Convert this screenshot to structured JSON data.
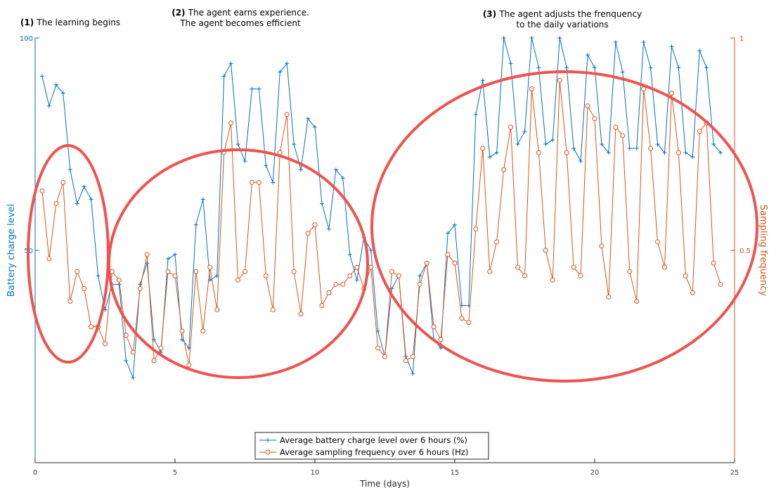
{
  "chart_data": {
    "type": "line",
    "xlabel": "Time (days)",
    "ylabel_left": "Battery charge level",
    "ylabel_right": "Sampling frequency",
    "xlim": [
      0,
      25
    ],
    "ylim_left": [
      0,
      100
    ],
    "ylim_right": [
      0,
      1
    ],
    "xticks": [
      0,
      5,
      10,
      15,
      20,
      25
    ],
    "yticks_left": [
      50,
      100
    ],
    "yticks_right": [
      0.5,
      1
    ],
    "grid": false,
    "legend_position": "bottom-center",
    "annotations": [
      {
        "bold": "(1)",
        "lines": [
          "The learning begins"
        ]
      },
      {
        "bold": "(2)",
        "lines": [
          "The agent earns experience.",
          "The agent becomes efficient"
        ]
      },
      {
        "bold": "(3)",
        "lines": [
          "The agent adjusts the frenquency",
          "to the daily variations"
        ]
      }
    ],
    "series": [
      {
        "name": "Average battery charge level over 6 hours (%)",
        "axis": "left",
        "color": "#0072BD",
        "marker": "+",
        "x": [
          0.25,
          0.5,
          0.75,
          1,
          1.25,
          1.5,
          1.75,
          2,
          2.25,
          2.5,
          2.75,
          3,
          3.25,
          3.5,
          3.75,
          4,
          4.25,
          4.5,
          4.75,
          5,
          5.25,
          5.5,
          5.75,
          6,
          6.25,
          6.5,
          6.75,
          7,
          7.25,
          7.5,
          7.75,
          8,
          8.25,
          8.5,
          8.75,
          9,
          9.25,
          9.5,
          9.75,
          10,
          10.25,
          10.5,
          10.75,
          11,
          11.25,
          11.5,
          11.75,
          12,
          12.25,
          12.5,
          12.75,
          13,
          13.25,
          13.5,
          13.75,
          14,
          14.25,
          14.5,
          14.75,
          15,
          15.25,
          15.5,
          15.75,
          16,
          16.25,
          16.5,
          16.75,
          17,
          17.25,
          17.5,
          17.75,
          18,
          18.25,
          18.5,
          18.75,
          19,
          19.25,
          19.5,
          19.75,
          20,
          20.25,
          20.5,
          20.75,
          21,
          21.25,
          21.5,
          21.75,
          22,
          22.25,
          22.5,
          22.75,
          23,
          23.25,
          23.5,
          23.75,
          24,
          24.25,
          24.5
        ],
        "values": [
          91,
          84,
          89,
          87,
          69,
          61,
          65,
          62,
          44,
          36,
          42,
          42,
          24,
          20,
          42,
          47,
          29,
          26,
          48,
          49,
          29,
          27,
          56,
          62,
          43,
          44,
          91,
          94,
          75,
          71,
          88,
          88,
          70,
          66,
          92,
          94,
          75,
          69,
          81,
          79,
          61,
          55,
          69,
          67,
          49,
          43,
          53,
          50,
          31,
          25,
          41,
          44,
          25,
          21,
          44,
          47,
          29,
          27,
          54,
          56,
          37,
          37,
          82,
          90,
          72,
          73,
          100,
          94,
          75,
          78,
          100,
          93,
          75,
          76,
          100,
          93,
          74,
          71,
          96,
          93,
          75,
          73,
          99,
          92,
          74,
          74,
          99,
          93,
          75,
          73,
          98,
          93,
          73,
          72,
          97,
          93,
          75,
          73
        ]
      },
      {
        "name": "Average sampling frequency over 6 hours (Hz)",
        "axis": "right",
        "color": "#D95319",
        "marker": "o",
        "x": [
          0.25,
          0.5,
          0.75,
          1,
          1.25,
          1.5,
          1.75,
          2,
          2.25,
          2.5,
          2.75,
          3,
          3.25,
          3.5,
          3.75,
          4,
          4.25,
          4.5,
          4.75,
          5,
          5.25,
          5.5,
          5.75,
          6,
          6.25,
          6.5,
          6.75,
          7,
          7.25,
          7.5,
          7.75,
          8,
          8.25,
          8.5,
          8.75,
          9,
          9.25,
          9.5,
          9.75,
          10,
          10.25,
          10.5,
          10.75,
          11,
          11.25,
          11.5,
          11.75,
          12,
          12.25,
          12.5,
          12.75,
          13,
          13.25,
          13.5,
          13.75,
          14,
          14.25,
          14.5,
          14.75,
          15,
          15.25,
          15.5,
          15.75,
          16,
          16.25,
          16.5,
          16.75,
          17,
          17.25,
          17.5,
          17.75,
          18,
          18.25,
          18.5,
          18.75,
          19,
          19.25,
          19.5,
          19.75,
          20,
          20.25,
          20.5,
          20.75,
          21,
          21.25,
          21.5,
          21.75,
          22,
          22.25,
          22.5,
          22.75,
          23,
          23.25,
          23.5,
          23.75,
          24,
          24.25,
          24.5
        ],
        "values": [
          0.64,
          0.48,
          0.61,
          0.66,
          0.38,
          0.45,
          0.41,
          0.32,
          0.32,
          0.28,
          0.45,
          0.43,
          0.3,
          0.26,
          0.41,
          0.49,
          0.24,
          0.27,
          0.45,
          0.44,
          0.31,
          0.23,
          0.45,
          0.31,
          0.46,
          0.36,
          0.73,
          0.8,
          0.43,
          0.45,
          0.66,
          0.66,
          0.44,
          0.36,
          0.73,
          0.82,
          0.45,
          0.35,
          0.54,
          0.56,
          0.37,
          0.4,
          0.42,
          0.42,
          0.44,
          0.46,
          0.41,
          0.46,
          0.27,
          0.25,
          0.45,
          0.44,
          0.24,
          0.25,
          0.42,
          0.47,
          0.32,
          0.29,
          0.49,
          0.47,
          0.34,
          0.33,
          0.55,
          0.74,
          0.45,
          0.52,
          0.69,
          0.79,
          0.46,
          0.44,
          0.88,
          0.73,
          0.5,
          0.43,
          0.9,
          0.73,
          0.46,
          0.44,
          0.84,
          0.81,
          0.51,
          0.39,
          0.79,
          0.77,
          0.45,
          0.38,
          0.88,
          0.74,
          0.52,
          0.46,
          0.87,
          0.73,
          0.44,
          0.4,
          0.78,
          0.8,
          0.47,
          0.42
        ]
      }
    ]
  }
}
